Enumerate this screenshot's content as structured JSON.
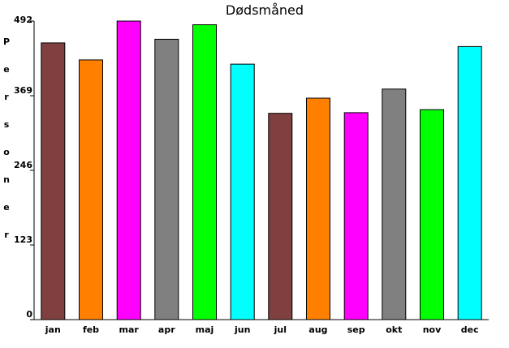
{
  "chart_data": {
    "type": "bar",
    "title": "Dødsmåned",
    "xlabel": "",
    "ylabel": "Personer",
    "categories": [
      "jan",
      "feb",
      "mar",
      "apr",
      "maj",
      "jun",
      "jul",
      "aug",
      "sep",
      "okt",
      "nov",
      "dec"
    ],
    "values": [
      456,
      428,
      492,
      462,
      486,
      421,
      340,
      365,
      341,
      380,
      346,
      450
    ],
    "ylim": [
      0,
      492
    ],
    "yticks": [
      0,
      123,
      246,
      369,
      492
    ],
    "grid": false,
    "legend": "none",
    "bar_colors": [
      "#804040",
      "#ff8000",
      "#ff00ff",
      "#808080",
      "#00ff00",
      "#00ffff",
      "#804040",
      "#ff8000",
      "#ff00ff",
      "#808080",
      "#00ff00",
      "#00ffff"
    ]
  }
}
